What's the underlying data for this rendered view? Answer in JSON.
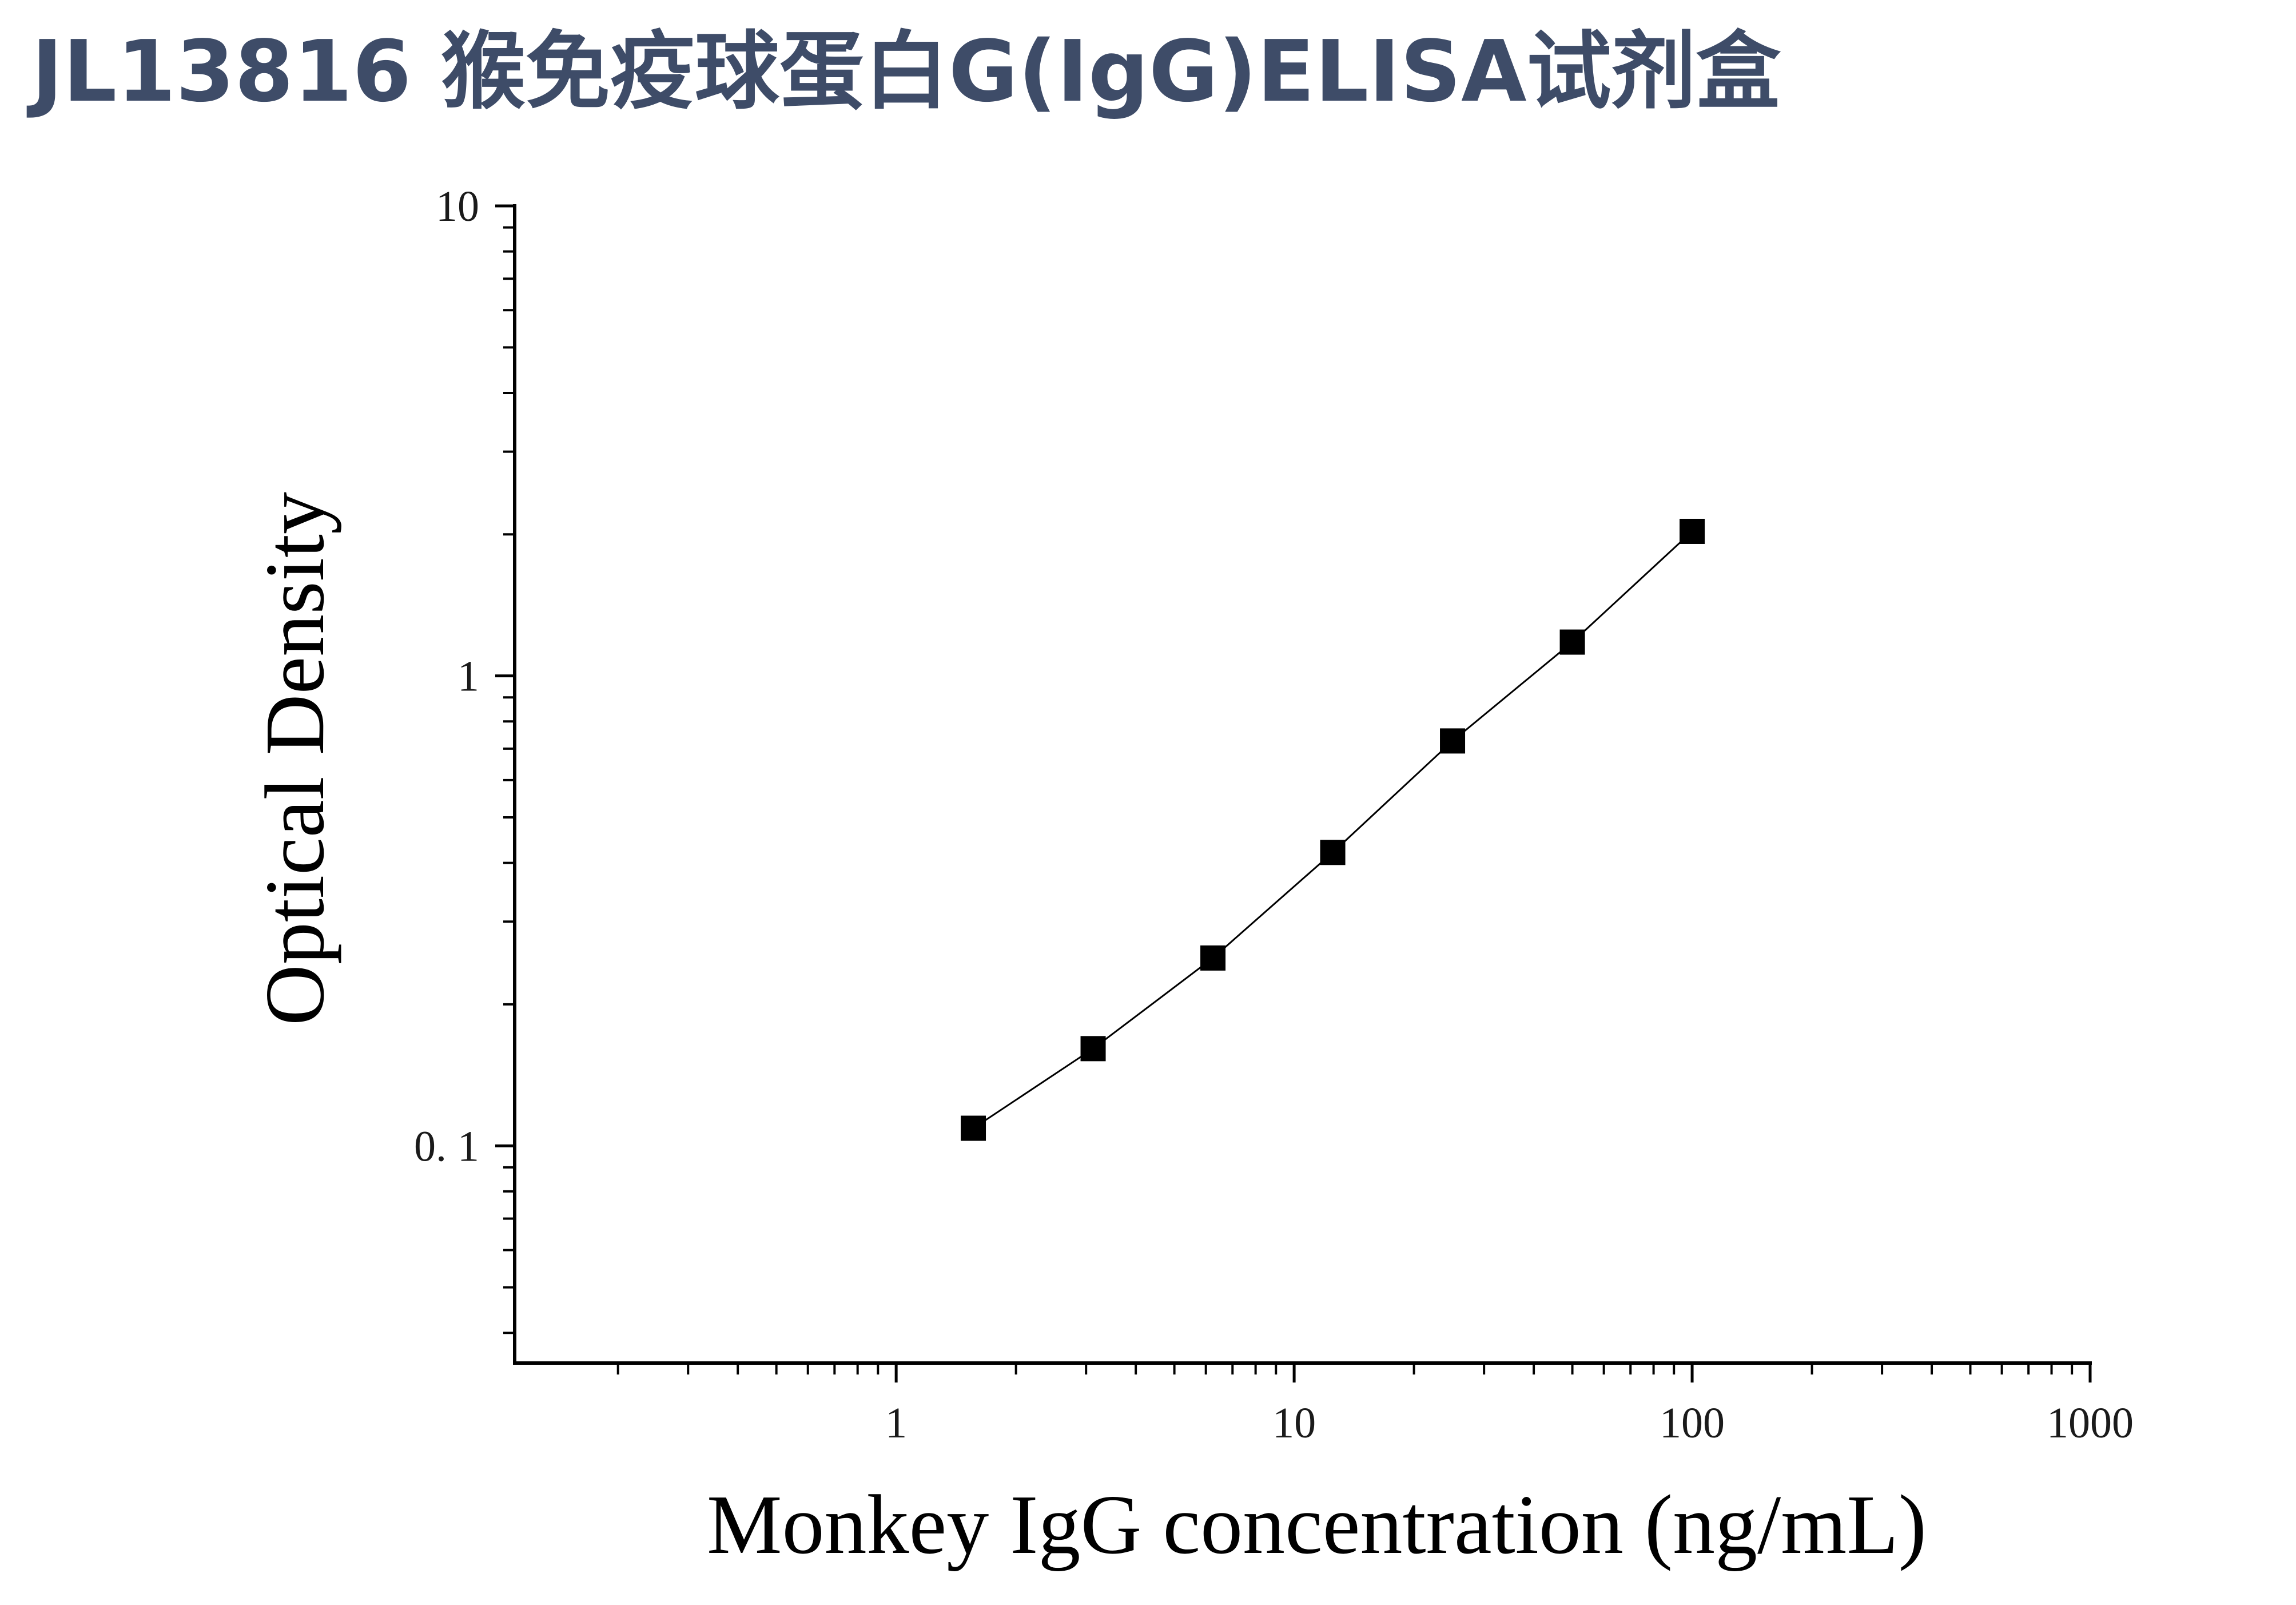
{
  "page": {
    "title": "JL13816 猴免疫球蛋白G(IgG)ELISA试剂盒",
    "title_color": "#3e4c68"
  },
  "chart_data": {
    "type": "line",
    "markers": true,
    "marker_shape": "square",
    "title": "",
    "xlabel": "Monkey IgG concentration (ng/mL)",
    "ylabel": "Optical Density",
    "xscale": "log",
    "yscale": "log",
    "xlim": [
      0.11,
      1000
    ],
    "ylim": [
      0.0345,
      10
    ],
    "x_ticks": [
      {
        "value": 1,
        "label": "1"
      },
      {
        "value": 10,
        "label": "10"
      },
      {
        "value": 100,
        "label": "100"
      },
      {
        "value": 1000,
        "label": "1000"
      }
    ],
    "y_ticks": [
      {
        "value": 0.1,
        "label": "0. 1"
      },
      {
        "value": 1,
        "label": "1"
      },
      {
        "value": 10,
        "label": "10"
      }
    ],
    "grid": false,
    "legend": "none",
    "series": [
      {
        "x": [
          1.5625,
          3.125,
          6.25,
          12.5,
          25,
          50,
          100
        ],
        "y": [
          0.109,
          0.161,
          0.251,
          0.421,
          0.727,
          1.18,
          2.03
        ]
      }
    ],
    "colors": {
      "axis": "#000000",
      "marker": "#000000",
      "line": "#000000"
    }
  }
}
